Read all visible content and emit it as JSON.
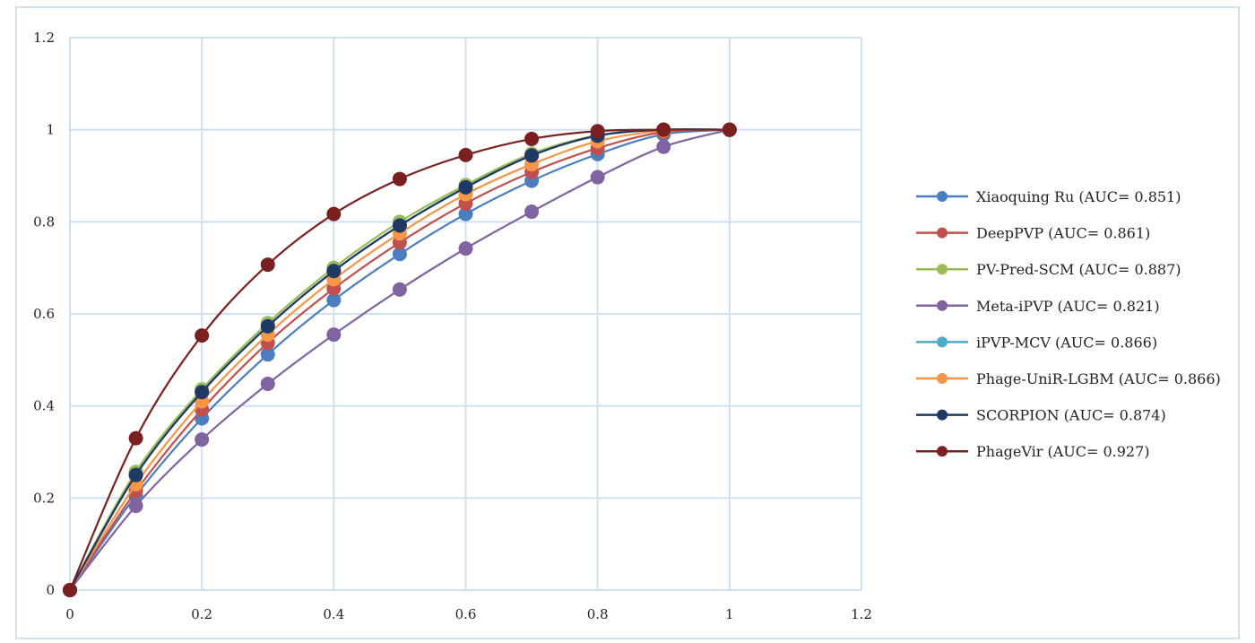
{
  "chart_data": {
    "type": "line",
    "title": "",
    "xlabel": "",
    "ylabel": "",
    "xlim": [
      0,
      1.2
    ],
    "ylim": [
      0,
      1.2
    ],
    "xticks": [
      "0",
      "0.2",
      "0.4",
      "0.6",
      "0.8",
      "1",
      "1.2"
    ],
    "yticks": [
      "0",
      "0.2",
      "0.4",
      "0.6",
      "0.8",
      "1",
      "1.2"
    ],
    "grid": true,
    "legend_position": "right",
    "x": [
      0,
      0.1,
      0.2,
      0.3,
      0.4,
      0.5,
      0.6,
      0.7,
      0.8,
      0.9,
      1.0
    ],
    "series": [
      {
        "name": "Xiaoquing Ru (AUC= 0.851)",
        "color": "#4a7ebf",
        "values": [
          0,
          0.205,
          0.373,
          0.512,
          0.63,
          0.73,
          0.817,
          0.889,
          0.947,
          0.99,
          1.0
        ]
      },
      {
        "name": "DeepPVP (AUC= 0.861)",
        "color": "#c0504d",
        "values": [
          0,
          0.215,
          0.392,
          0.537,
          0.655,
          0.755,
          0.84,
          0.908,
          0.96,
          0.995,
          1.0
        ]
      },
      {
        "name": "PV-Pred-SCM (AUC= 0.887)",
        "color": "#9bbb59",
        "values": [
          0,
          0.257,
          0.436,
          0.58,
          0.7,
          0.8,
          0.88,
          0.948,
          0.988,
          1.0,
          1.0
        ]
      },
      {
        "name": "Meta-iPVP (AUC= 0.821)",
        "color": "#8064a2",
        "values": [
          0,
          0.183,
          0.327,
          0.448,
          0.555,
          0.653,
          0.742,
          0.822,
          0.897,
          0.963,
          1.0
        ]
      },
      {
        "name": "iPVP-MCV (AUC= 0.866)",
        "color": "#4bacc6",
        "values": [
          0,
          0.25,
          0.43,
          0.573,
          0.693,
          0.792,
          0.874,
          0.944,
          0.987,
          1.0,
          1.0
        ]
      },
      {
        "name": "Phage-UniR-LGBM (AUC= 0.866)",
        "color": "#f79646",
        "values": [
          0,
          0.23,
          0.41,
          0.555,
          0.675,
          0.775,
          0.86,
          0.925,
          0.975,
          0.998,
          1.0
        ]
      },
      {
        "name": "SCORPION (AUC= 0.874)",
        "color": "#1f3864",
        "values": [
          0,
          0.25,
          0.43,
          0.573,
          0.693,
          0.792,
          0.875,
          0.944,
          0.987,
          1.0,
          1.0
        ]
      },
      {
        "name": "PhageVir (AUC= 0.927)",
        "color": "#7b2020",
        "values": [
          0,
          0.33,
          0.553,
          0.707,
          0.817,
          0.893,
          0.945,
          0.98,
          0.997,
          1.0,
          1.0
        ]
      }
    ]
  }
}
